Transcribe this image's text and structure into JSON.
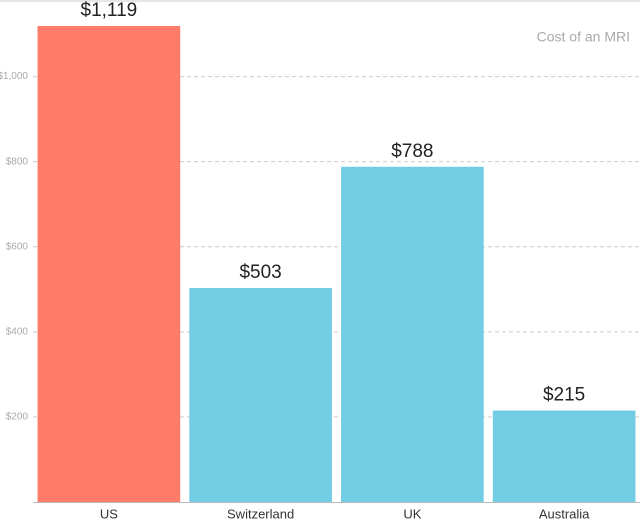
{
  "chart_data": {
    "type": "bar",
    "title": "Cost of an MRI",
    "categories": [
      "US",
      "Switzerland",
      "UK",
      "Australia"
    ],
    "values": [
      1119,
      503,
      788,
      215
    ],
    "value_labels": [
      "$1,119",
      "$503",
      "$788",
      "$215"
    ],
    "colors": [
      "#ff7b6a",
      "#72cde4",
      "#72cde4",
      "#72cde4"
    ],
    "ylim": [
      0,
      1180
    ],
    "yticks": [
      {
        "value": 200,
        "label": "$200"
      },
      {
        "value": 400,
        "label": "$400"
      },
      {
        "value": 600,
        "label": "$600"
      },
      {
        "value": 800,
        "label": "$800"
      },
      {
        "value": 1000,
        "label": "$1,000"
      }
    ],
    "grid": true
  }
}
